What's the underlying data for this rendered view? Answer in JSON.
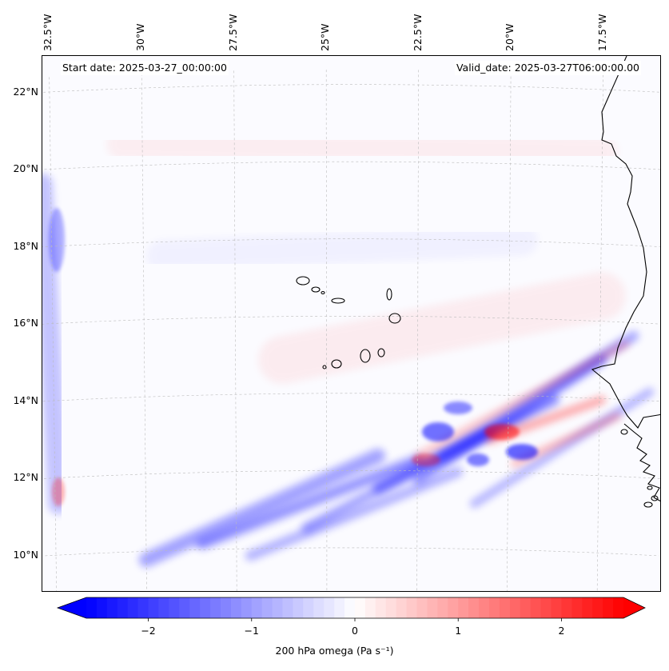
{
  "map": {
    "start_date": "Start date: 2025-03-27_00:00:00",
    "valid_date": "Valid_date: 2025-03-27T06:00:00.00",
    "extent": {
      "lon_min": -32.8,
      "lon_max": -15.8,
      "lat_min": 8.9,
      "lat_max": 22.8
    },
    "longitude_labels": [
      "32.5°W",
      "30°W",
      "27.5°W",
      "25°W",
      "22.5°W",
      "20°W",
      "17.5°W"
    ],
    "longitude_values": [
      -32.5,
      -30,
      -27.5,
      -25,
      -22.5,
      -20,
      -17.5
    ],
    "latitude_labels": [
      "22°N",
      "20°N",
      "18°N",
      "16°N",
      "14°N",
      "12°N",
      "10°N"
    ],
    "latitude_values": [
      22,
      20,
      18,
      16,
      14,
      12,
      10
    ],
    "field": "200 hPa omega",
    "colors": {
      "negative": "#0000ff",
      "zero": "#ffffff",
      "positive": "#ff0000",
      "coast": "#000000"
    }
  },
  "colorbar": {
    "label": "200 hPa omega (Pa s⁻¹)",
    "min": -2.6,
    "max": 2.6,
    "tick_labels": [
      "−2",
      "−1",
      "0",
      "1",
      "2"
    ],
    "tick_values": [
      -2,
      -1,
      0,
      1,
      2
    ]
  }
}
